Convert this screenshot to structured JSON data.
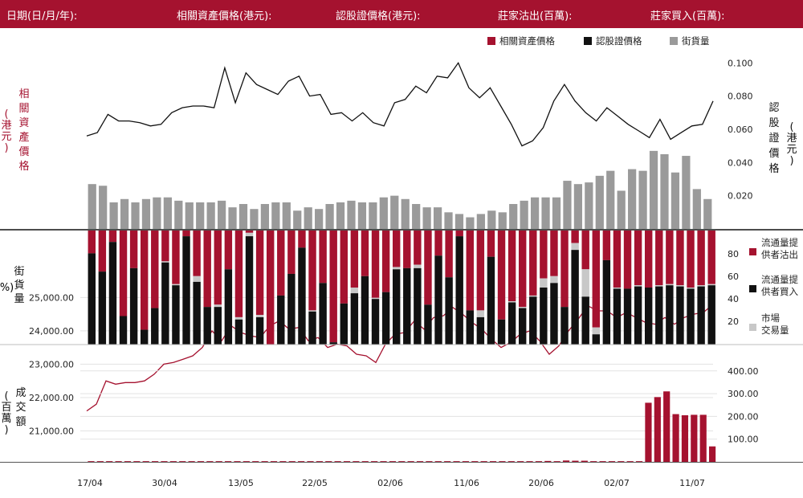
{
  "header": {
    "date": "日期(日/月/年):",
    "underlying": "相關資產價格(港元):",
    "warrant": "認股證價格(港元):",
    "mm_sell": "莊家沽出(百萬):",
    "mm_buy": "莊家買入(百萬):"
  },
  "colors": {
    "brand": "#a5122f",
    "black": "#111111",
    "grey": "#9a9a9a",
    "lightgrey": "#c8c8c8"
  },
  "chart_data": [
    {
      "type": "line",
      "legend": [
        "相關資產價格",
        "認股證價格",
        "街貨量"
      ],
      "left_axis_label": [
        "(港元)",
        "相關資產價格"
      ],
      "right_axis_label": [
        "認股證價格",
        "(港元)"
      ],
      "left_ticks": [
        "25,000.00",
        "24,000.00",
        "23,000.00",
        "22,000.00",
        "21,000.00"
      ],
      "right_ticks": [
        "0.100",
        "0.080",
        "0.060",
        "0.040",
        "0.020"
      ],
      "ylim_left": [
        20000,
        25400
      ],
      "ylim_right": [
        0,
        0.103
      ],
      "series": [
        {
          "name": "相關資產價格",
          "axis": "left",
          "values": [
            21600,
            21800,
            22500,
            22400,
            22450,
            22450,
            22500,
            22700,
            23000,
            23050,
            23150,
            23250,
            23500,
            24000,
            23700,
            24150,
            23950,
            23850,
            23800,
            24150,
            24300,
            24050,
            24100,
            23700,
            23800,
            23500,
            23600,
            23550,
            23300,
            23250,
            23050,
            23600,
            23900,
            23950,
            24300,
            24050,
            24400,
            24450,
            24700,
            24500,
            24250,
            24050,
            23750,
            23500,
            23650,
            23900,
            24000,
            23700,
            23300,
            23550,
            24000,
            24350,
            24750,
            24600,
            24600,
            24400,
            24550,
            24400,
            24250,
            24200,
            24400,
            24200,
            24400,
            24500,
            24550,
            24800
          ]
        },
        {
          "name": "認股證價格",
          "axis": "right",
          "values": [
            0.056,
            0.058,
            0.069,
            0.065,
            0.065,
            0.064,
            0.062,
            0.063,
            0.07,
            0.073,
            0.074,
            0.074,
            0.073,
            0.097,
            0.076,
            0.094,
            0.087,
            0.084,
            0.081,
            0.089,
            0.092,
            0.08,
            0.081,
            0.069,
            0.07,
            0.065,
            0.07,
            0.064,
            0.062,
            0.076,
            0.078,
            0.086,
            0.082,
            0.092,
            0.091,
            0.1,
            0.085,
            0.079,
            0.085,
            0.074,
            0.063,
            0.05,
            0.053,
            0.061,
            0.077,
            0.087,
            0.077,
            0.07,
            0.065,
            0.073,
            0.068,
            0.063,
            0.059,
            0.055,
            0.066,
            0.054,
            0.058,
            0.062,
            0.063,
            0.077
          ]
        },
        {
          "name": "街貨量",
          "axis": "right",
          "kind": "bar",
          "values": [
            0.027,
            0.026,
            0.016,
            0.018,
            0.016,
            0.018,
            0.019,
            0.019,
            0.017,
            0.016,
            0.016,
            0.016,
            0.017,
            0.013,
            0.015,
            0.012,
            0.015,
            0.016,
            0.016,
            0.011,
            0.013,
            0.012,
            0.015,
            0.016,
            0.017,
            0.016,
            0.016,
            0.019,
            0.02,
            0.018,
            0.015,
            0.013,
            0.013,
            0.01,
            0.009,
            0.007,
            0.009,
            0.011,
            0.01,
            0.015,
            0.017,
            0.019,
            0.019,
            0.019,
            0.029,
            0.027,
            0.028,
            0.032,
            0.035,
            0.023,
            0.036,
            0.035,
            0.047,
            0.045,
            0.034,
            0.044,
            0.024,
            0.018
          ]
        }
      ]
    },
    {
      "type": "bar",
      "stacked": true,
      "axis_label": [
        "(%)",
        "街貨量"
      ],
      "ticks": [
        "80",
        "60",
        "40",
        "20"
      ],
      "ylim": [
        0,
        100
      ],
      "legend": [
        "流通量提供者沽出",
        "流通量提供者買入",
        "市場交易量"
      ],
      "series": [
        {
          "name": "流通量提供者買入",
          "values": [
            80,
            64,
            90,
            25,
            67,
            13,
            32,
            72,
            52,
            95,
            55,
            33,
            33,
            66,
            22,
            95,
            24,
            0,
            43,
            62,
            85,
            29,
            54,
            2,
            36,
            45,
            60,
            40,
            46,
            66,
            67,
            67,
            35,
            78,
            59,
            95,
            30,
            24,
            77,
            22,
            37,
            32,
            42,
            50,
            54,
            33,
            83,
            42,
            9,
            74,
            49,
            49,
            51,
            50,
            51,
            52,
            51,
            49,
            51,
            52
          ]
        },
        {
          "name": "市場交易量",
          "values": [
            0,
            0,
            0,
            0,
            0,
            0,
            0,
            1,
            1,
            0,
            5,
            0,
            2,
            0,
            2,
            3,
            2,
            0,
            0,
            0,
            0,
            1,
            0,
            0,
            0,
            5,
            0,
            1,
            0,
            2,
            0,
            3,
            0,
            0,
            0,
            0,
            0,
            6,
            0,
            0,
            1,
            1,
            1,
            8,
            6,
            0,
            6,
            24,
            6,
            0,
            1,
            0,
            1,
            0,
            1,
            1,
            1,
            1,
            1,
            1
          ]
        },
        {
          "name": "流通量提供者沽出",
          "values": [
            20,
            36,
            10,
            75,
            33,
            87,
            68,
            27,
            47,
            5,
            40,
            67,
            65,
            34,
            76,
            2,
            74,
            100,
            57,
            38,
            15,
            70,
            46,
            98,
            64,
            50,
            40,
            59,
            54,
            32,
            33,
            30,
            65,
            22,
            41,
            5,
            70,
            70,
            23,
            78,
            62,
            67,
            57,
            42,
            40,
            67,
            11,
            34,
            85,
            26,
            50,
            51,
            48,
            50,
            48,
            47,
            48,
            50,
            48,
            47
          ]
        }
      ]
    },
    {
      "type": "bar",
      "axis_label": [
        "(百萬)",
        "成交額"
      ],
      "ticks": [
        "400.00",
        "300.00",
        "200.00",
        "100.00"
      ],
      "ylim": [
        0,
        470
      ],
      "x_labels": [
        "17/04",
        "30/04",
        "13/05",
        "22/05",
        "02/06",
        "11/06",
        "20/06",
        "02/07",
        "11/07"
      ],
      "series": [
        {
          "name": "成交額",
          "values": [
            3,
            3,
            3,
            3,
            3,
            3,
            3,
            3,
            3,
            3,
            3,
            3,
            3,
            3,
            3,
            3,
            3,
            3,
            3,
            3,
            3,
            3,
            3,
            3,
            3,
            3,
            3,
            3,
            3,
            3,
            3,
            3,
            3,
            3,
            3,
            3,
            3,
            3,
            3,
            3,
            3,
            3,
            3,
            3,
            3,
            3,
            3,
            3,
            3,
            3,
            4,
            3,
            6,
            5,
            5,
            3,
            3,
            3,
            3,
            3,
            3,
            260,
            285,
            310,
            210,
            205,
            207,
            207,
            68
          ]
        }
      ]
    }
  ]
}
